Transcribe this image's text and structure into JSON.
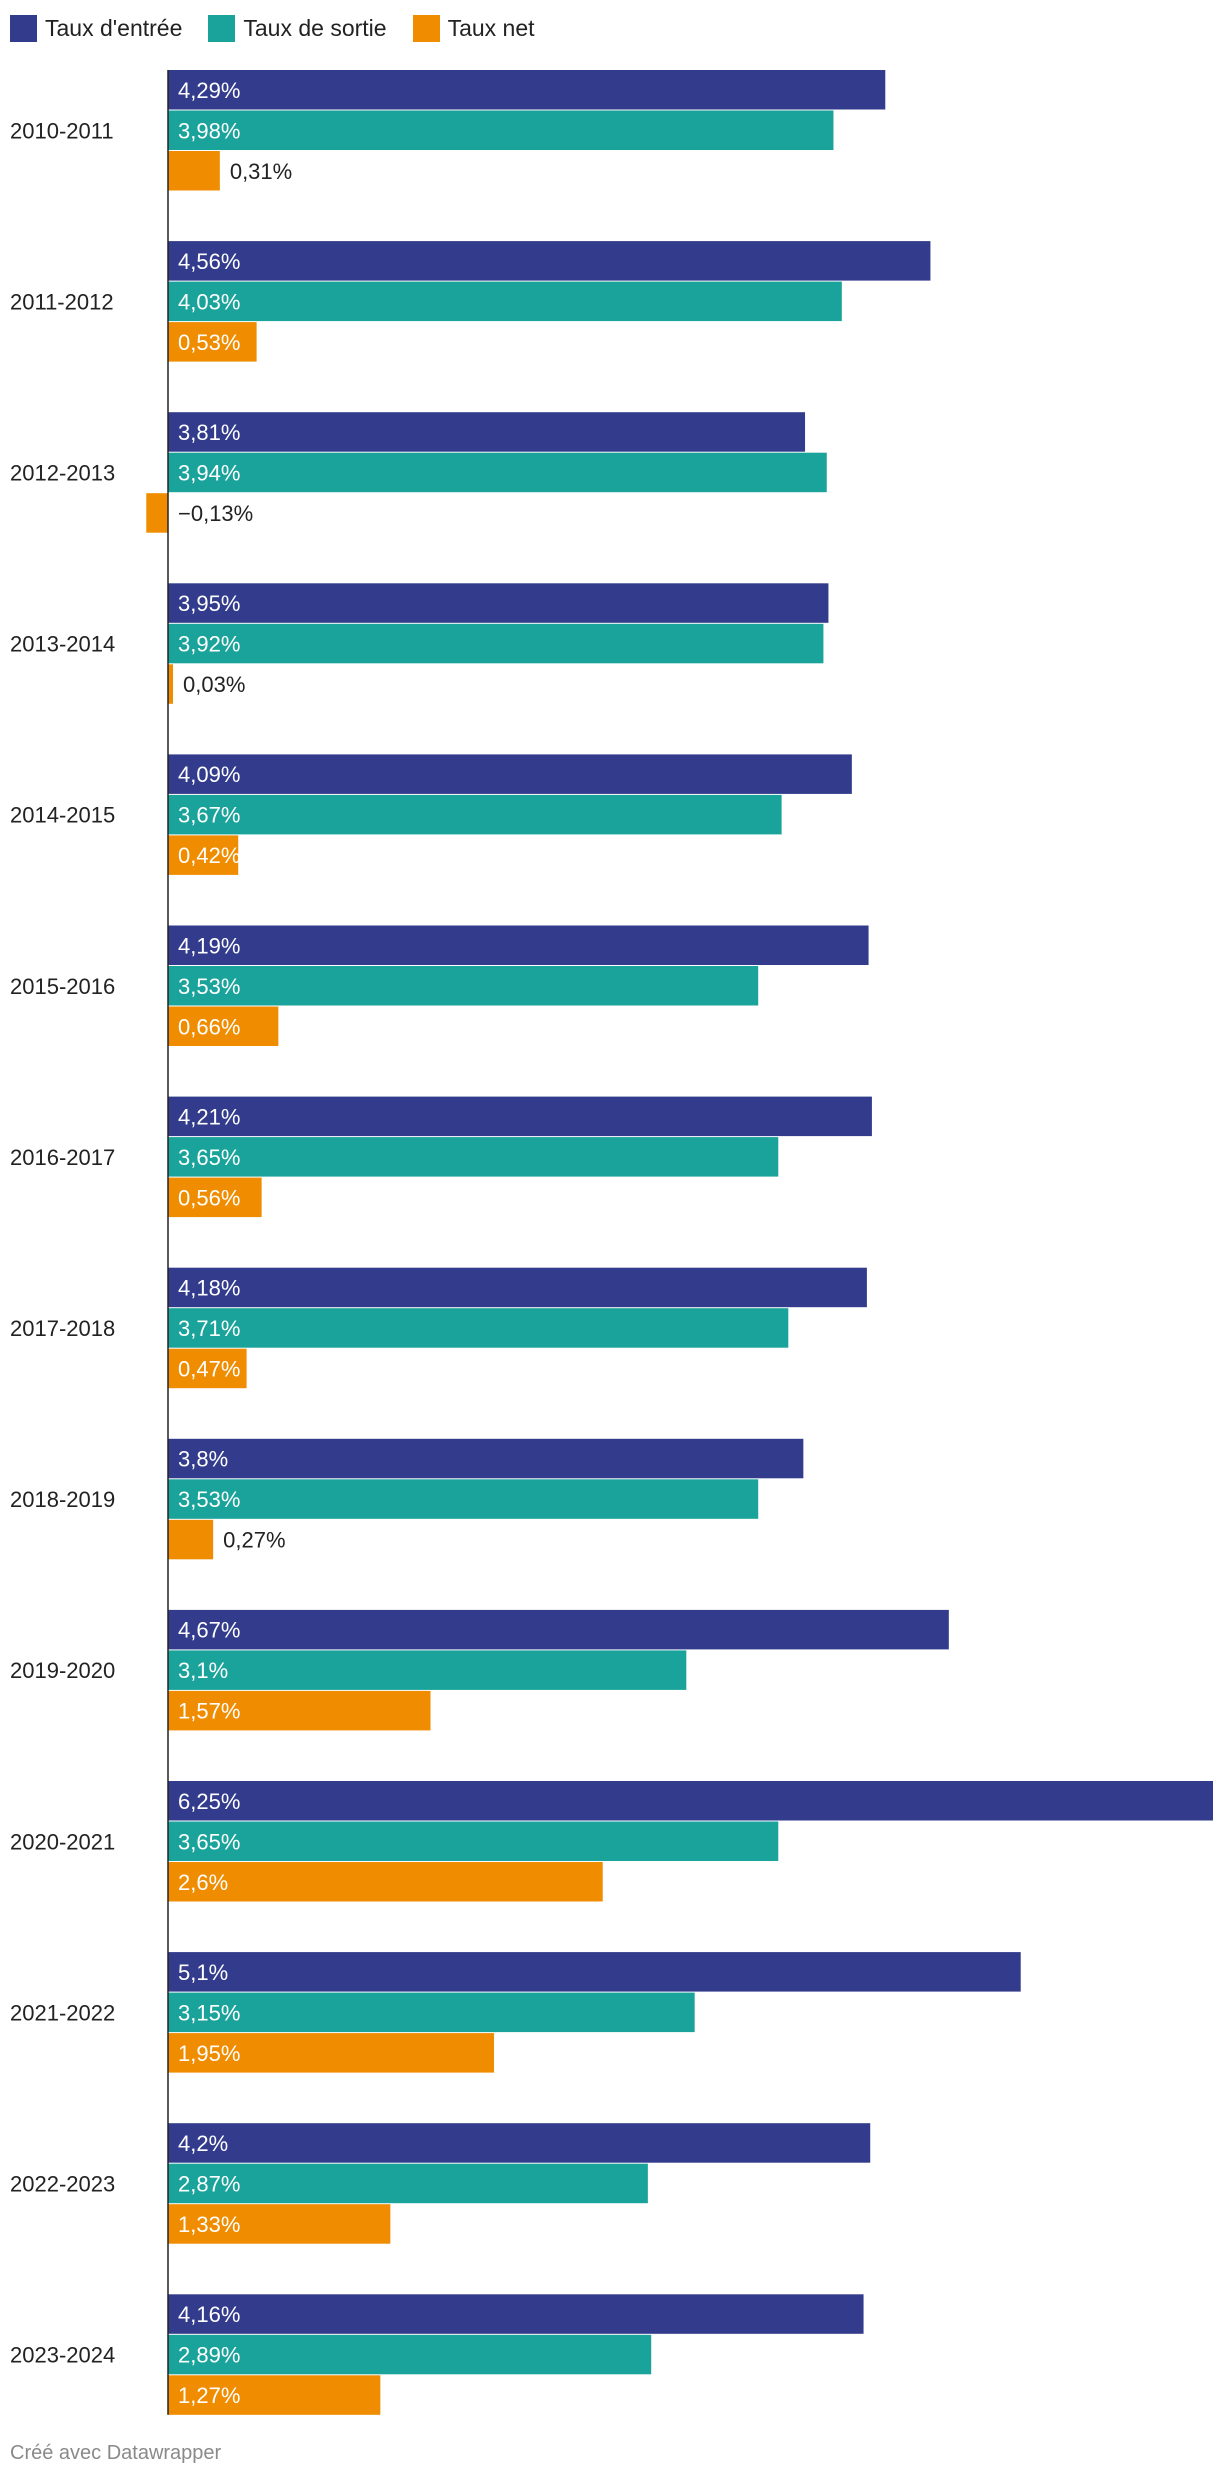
{
  "chart_data": {
    "type": "bar",
    "orientation": "horizontal",
    "title": "",
    "xlabel": "",
    "ylabel": "",
    "grid": false,
    "legend_position": "top-left",
    "categories": [
      "2010-2011",
      "2011-2012",
      "2012-2013",
      "2013-2014",
      "2014-2015",
      "2015-2016",
      "2016-2017",
      "2017-2018",
      "2018-2019",
      "2019-2020",
      "2020-2021",
      "2021-2022",
      "2022-2023",
      "2023-2024"
    ],
    "series": [
      {
        "name": "Taux d'entrée",
        "color": "#323b8c",
        "values": [
          4.29,
          4.56,
          3.81,
          3.95,
          4.09,
          4.19,
          4.21,
          4.18,
          3.8,
          4.67,
          6.25,
          5.1,
          4.2,
          4.16
        ],
        "labels": [
          "4,29%",
          "4,56%",
          "3,81%",
          "3,95%",
          "4,09%",
          "4,19%",
          "4,21%",
          "4,18%",
          "3,8%",
          "4,67%",
          "6,25%",
          "5,1%",
          "4,2%",
          "4,16%"
        ]
      },
      {
        "name": "Taux de sortie",
        "color": "#1aa39b",
        "values": [
          3.98,
          4.03,
          3.94,
          3.92,
          3.67,
          3.53,
          3.65,
          3.71,
          3.53,
          3.1,
          3.65,
          3.15,
          2.87,
          2.89
        ],
        "labels": [
          "3,98%",
          "4,03%",
          "3,94%",
          "3,92%",
          "3,67%",
          "3,53%",
          "3,65%",
          "3,71%",
          "3,53%",
          "3,1%",
          "3,65%",
          "3,15%",
          "2,87%",
          "2,89%"
        ]
      },
      {
        "name": "Taux net",
        "color": "#f08c00",
        "values": [
          0.31,
          0.53,
          -0.13,
          0.03,
          0.42,
          0.66,
          0.56,
          0.47,
          0.27,
          1.57,
          2.6,
          1.95,
          1.33,
          1.27
        ],
        "labels": [
          "0,31%",
          "0,53%",
          "−0,13%",
          "0,03%",
          "0,42%",
          "0,66%",
          "0,56%",
          "0,47%",
          "0,27%",
          "1,57%",
          "2,6%",
          "1,95%",
          "1,33%",
          "1,27%"
        ]
      }
    ],
    "xlim": [
      -0.13,
      6.25
    ]
  },
  "footer": {
    "credit": "Créé avec Datawrapper"
  }
}
